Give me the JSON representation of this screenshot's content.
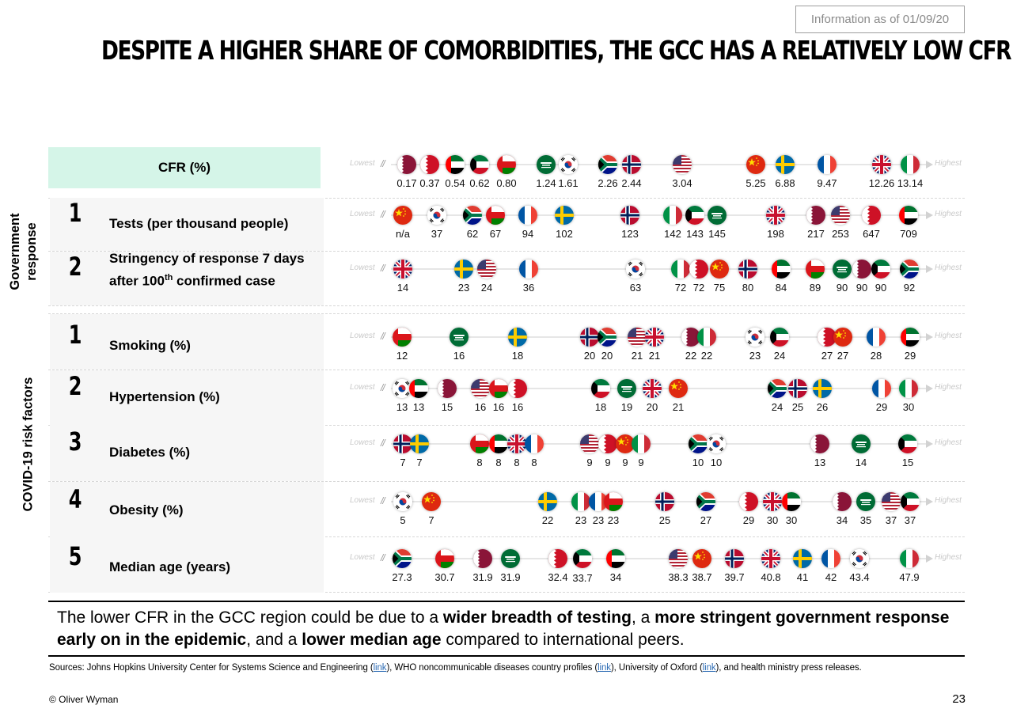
{
  "info_box": "Information as of 01/09/20",
  "title": "DESPITE A HIGHER SHARE OF COMORBIDITIES, THE GCC HAS A RELATIVELY LOW CFR",
  "scale": {
    "lowest": "Lowest",
    "highest": "Highest",
    "break": "//"
  },
  "groups": {
    "government": "Government response",
    "covid": "COVID-19 risk factors"
  },
  "rows": [
    {
      "id": "cfr",
      "label": "CFR (%)",
      "number": "",
      "entries": [
        {
          "flag": "qatar",
          "value": "0.17"
        },
        {
          "flag": "bahrain",
          "value": "0.37"
        },
        {
          "flag": "uae",
          "value": "0.54"
        },
        {
          "flag": "kuwait",
          "value": "0.62"
        },
        {
          "flag": "oman",
          "value": "0.80"
        },
        {
          "flag": "saudi",
          "value": "1.24"
        },
        {
          "flag": "korea",
          "value": "1.61"
        },
        {
          "flag": "south-africa",
          "value": "2.26"
        },
        {
          "flag": "norway",
          "value": "2.44"
        },
        {
          "flag": "usa",
          "value": "3.04"
        },
        {
          "flag": "china",
          "value": "5.25"
        },
        {
          "flag": "sweden",
          "value": "6.88"
        },
        {
          "flag": "france",
          "value": "9.47"
        },
        {
          "flag": "uk",
          "value": "12.26"
        },
        {
          "flag": "italy",
          "value": "13.14"
        }
      ]
    },
    {
      "id": "tests",
      "label": "Tests (per thousand people)",
      "number": "1",
      "entries": [
        {
          "flag": "china",
          "value": "n/a"
        },
        {
          "flag": "korea",
          "value": "37"
        },
        {
          "flag": "south-africa",
          "value": "62"
        },
        {
          "flag": "oman",
          "value": "67"
        },
        {
          "flag": "france",
          "value": "94"
        },
        {
          "flag": "sweden",
          "value": "102"
        },
        {
          "flag": "norway",
          "value": "123"
        },
        {
          "flag": "italy",
          "value": "142"
        },
        {
          "flag": "kuwait",
          "value": "143"
        },
        {
          "flag": "saudi",
          "value": "145"
        },
        {
          "flag": "uk",
          "value": "198"
        },
        {
          "flag": "qatar",
          "value": "217"
        },
        {
          "flag": "usa",
          "value": "253"
        },
        {
          "flag": "bahrain",
          "value": "647"
        },
        {
          "flag": "uae",
          "value": "709"
        }
      ]
    },
    {
      "id": "stringency",
      "label_line1": "Stringency of response 7 days",
      "label_line2_pre": "after 100",
      "label_sup": "th",
      "label_line2_post": " confirmed case",
      "number": "2",
      "entries": [
        {
          "flag": "uk",
          "value": "14"
        },
        {
          "flag": "sweden",
          "value": "23"
        },
        {
          "flag": "usa",
          "value": "24"
        },
        {
          "flag": "france",
          "value": "36"
        },
        {
          "flag": "korea",
          "value": "63"
        },
        {
          "flag": "italy",
          "value": "72"
        },
        {
          "flag": "bahrain",
          "value": "72"
        },
        {
          "flag": "china",
          "value": "75"
        },
        {
          "flag": "norway",
          "value": "80"
        },
        {
          "flag": "uae",
          "value": "84"
        },
        {
          "flag": "oman",
          "value": "89"
        },
        {
          "flag": "saudi",
          "value": "90"
        },
        {
          "flag": "qatar",
          "value": "90"
        },
        {
          "flag": "kuwait",
          "value": "90"
        },
        {
          "flag": "south-africa",
          "value": "92"
        }
      ]
    },
    {
      "id": "smoking",
      "label": "Smoking (%)",
      "number": "1",
      "entries": [
        {
          "flag": "oman",
          "value": "12"
        },
        {
          "flag": "saudi",
          "value": "16"
        },
        {
          "flag": "sweden",
          "value": "18"
        },
        {
          "flag": "norway",
          "value": "20"
        },
        {
          "flag": "south-africa",
          "value": "20"
        },
        {
          "flag": "usa",
          "value": "21"
        },
        {
          "flag": "uk",
          "value": "21"
        },
        {
          "flag": "qatar",
          "value": "22"
        },
        {
          "flag": "italy",
          "value": "22"
        },
        {
          "flag": "korea",
          "value": "23"
        },
        {
          "flag": "kuwait",
          "value": "24"
        },
        {
          "flag": "bahrain",
          "value": "27"
        },
        {
          "flag": "china",
          "value": "27"
        },
        {
          "flag": "france",
          "value": "28"
        },
        {
          "flag": "uae",
          "value": "29"
        }
      ]
    },
    {
      "id": "hypertension",
      "label": "Hypertension (%)",
      "number": "2",
      "entries": [
        {
          "flag": "korea",
          "value": "13"
        },
        {
          "flag": "uae",
          "value": "13"
        },
        {
          "flag": "qatar",
          "value": "15"
        },
        {
          "flag": "usa",
          "value": "16"
        },
        {
          "flag": "oman",
          "value": "16"
        },
        {
          "flag": "bahrain",
          "value": "16"
        },
        {
          "flag": "kuwait",
          "value": "18"
        },
        {
          "flag": "saudi",
          "value": "19"
        },
        {
          "flag": "uk",
          "value": "20"
        },
        {
          "flag": "china",
          "value": "21"
        },
        {
          "flag": "south-africa",
          "value": "24"
        },
        {
          "flag": "norway",
          "value": "25"
        },
        {
          "flag": "sweden",
          "value": "26"
        },
        {
          "flag": "france",
          "value": "29"
        },
        {
          "flag": "italy",
          "value": "30"
        }
      ]
    },
    {
      "id": "diabetes",
      "label": "Diabetes (%)",
      "number": "3",
      "entries": [
        {
          "flag": "norway",
          "value": "7"
        },
        {
          "flag": "sweden",
          "value": "7"
        },
        {
          "flag": "oman",
          "value": "8"
        },
        {
          "flag": "uae",
          "value": "8"
        },
        {
          "flag": "uk",
          "value": "8"
        },
        {
          "flag": "france",
          "value": "8"
        },
        {
          "flag": "usa",
          "value": "9"
        },
        {
          "flag": "bahrain",
          "value": "9"
        },
        {
          "flag": "china",
          "value": "9"
        },
        {
          "flag": "italy",
          "value": "9"
        },
        {
          "flag": "south-africa",
          "value": "10"
        },
        {
          "flag": "korea",
          "value": "10"
        },
        {
          "flag": "qatar",
          "value": "13"
        },
        {
          "flag": "saudi",
          "value": "14"
        },
        {
          "flag": "kuwait",
          "value": "15"
        }
      ]
    },
    {
      "id": "obesity",
      "label": "Obesity (%)",
      "number": "4",
      "entries": [
        {
          "flag": "korea",
          "value": "5"
        },
        {
          "flag": "china",
          "value": "7"
        },
        {
          "flag": "sweden",
          "value": "22"
        },
        {
          "flag": "italy",
          "value": "23"
        },
        {
          "flag": "france",
          "value": "23"
        },
        {
          "flag": "oman",
          "value": "23"
        },
        {
          "flag": "norway",
          "value": "25"
        },
        {
          "flag": "south-africa",
          "value": "27"
        },
        {
          "flag": "bahrain",
          "value": "29"
        },
        {
          "flag": "uk",
          "value": "30"
        },
        {
          "flag": "uae",
          "value": "30"
        },
        {
          "flag": "qatar",
          "value": "34"
        },
        {
          "flag": "saudi",
          "value": "35"
        },
        {
          "flag": "usa",
          "value": "37"
        },
        {
          "flag": "kuwait",
          "value": "37"
        }
      ]
    },
    {
      "id": "median_age",
      "label": "Median age (years)",
      "number": "5",
      "entries": [
        {
          "flag": "south-africa",
          "value": "27.3"
        },
        {
          "flag": "oman",
          "value": "30.7"
        },
        {
          "flag": "qatar",
          "value": "31.9"
        },
        {
          "flag": "saudi",
          "value": "31.9"
        },
        {
          "flag": "bahrain",
          "value": "32.4"
        },
        {
          "flag": "kuwait",
          "value": "33.7"
        },
        {
          "flag": "uae",
          "value": "34"
        },
        {
          "flag": "usa",
          "value": "38.3"
        },
        {
          "flag": "china",
          "value": "38.7"
        },
        {
          "flag": "norway",
          "value": "39.7"
        },
        {
          "flag": "uk",
          "value": "40.8"
        },
        {
          "flag": "sweden",
          "value": "41"
        },
        {
          "flag": "france",
          "value": "42"
        },
        {
          "flag": "korea",
          "value": "43.4"
        },
        {
          "flag": "italy",
          "value": "47.9"
        }
      ]
    }
  ],
  "conclusion": {
    "p1": "The lower CFR in the GCC region could be due to a ",
    "b1": "wider breadth of testing",
    "p2": ", a ",
    "b2": "more stringent government response early on in the epidemic",
    "p3": ", and a ",
    "b3": "lower median age",
    "p4": " compared to international peers."
  },
  "sources": {
    "s1": "Sources: Johns Hopkins University Center for Systems Science and Engineering (",
    "link": "link",
    "s2": "), WHO noncommunicable diseases country profiles (",
    "s3": "), University of Oxford (",
    "s4": "), and health ministry press releases."
  },
  "copyright": "© Oliver Wyman",
  "page_number": "23",
  "colors": {
    "cfr_header_bg": "#d5f5e8",
    "row_panel_bg": "#f6f6f6",
    "link": "#2f6db5"
  }
}
